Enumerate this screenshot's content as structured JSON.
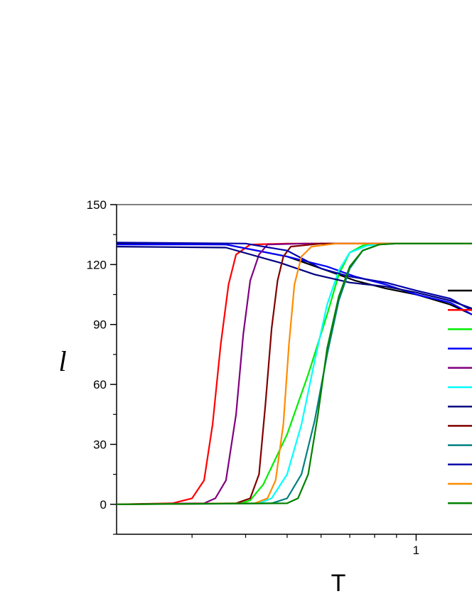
{
  "chart_data": {
    "type": "line",
    "xlabel": "T",
    "ylabel": "l",
    "x_scale": "log",
    "xlim": [
      0.2,
      1.35
    ],
    "ylim": [
      -15,
      150
    ],
    "y_ticks": [
      0,
      30,
      60,
      90,
      120,
      150
    ],
    "x_ticks_labeled": [
      1
    ],
    "x_ticks_minor": [
      0.3,
      0.4,
      0.5,
      0.6,
      0.7,
      0.8,
      0.9
    ],
    "legend_position": "right",
    "series": [
      {
        "color": "#000000",
        "points": [
          [
            0.2,
            130.5
          ],
          [
            0.36,
            130
          ],
          [
            0.5,
            124
          ],
          [
            0.62,
            117
          ],
          [
            0.72,
            112
          ],
          [
            0.85,
            108
          ],
          [
            1.0,
            105
          ],
          [
            1.2,
            100
          ],
          [
            1.35,
            95
          ]
        ]
      },
      {
        "color": "#ff0000",
        "points": [
          [
            0.2,
            0
          ],
          [
            0.27,
            0.5
          ],
          [
            0.3,
            3
          ],
          [
            0.32,
            12
          ],
          [
            0.335,
            40
          ],
          [
            0.35,
            80
          ],
          [
            0.365,
            110
          ],
          [
            0.38,
            125
          ],
          [
            0.41,
            130
          ],
          [
            0.5,
            130.5
          ],
          [
            1.35,
            130.5
          ]
        ]
      },
      {
        "color": "#00ee00",
        "points": [
          [
            0.2,
            0
          ],
          [
            0.39,
            0.5
          ],
          [
            0.41,
            2
          ],
          [
            0.44,
            10
          ],
          [
            0.5,
            35
          ],
          [
            0.56,
            65
          ],
          [
            0.62,
            95
          ],
          [
            0.66,
            115
          ],
          [
            0.7,
            126
          ],
          [
            0.75,
            129.5
          ],
          [
            0.85,
            130.5
          ],
          [
            1.35,
            130.5
          ]
        ]
      },
      {
        "color": "#0000ff",
        "points": [
          [
            0.2,
            130
          ],
          [
            0.36,
            130
          ],
          [
            0.5,
            124
          ],
          [
            0.62,
            119
          ],
          [
            0.72,
            114
          ],
          [
            0.85,
            110
          ],
          [
            1.0,
            105
          ],
          [
            1.2,
            101
          ],
          [
            1.35,
            95
          ]
        ]
      },
      {
        "color": "#800080",
        "points": [
          [
            0.2,
            0
          ],
          [
            0.32,
            0.5
          ],
          [
            0.34,
            3
          ],
          [
            0.36,
            12
          ],
          [
            0.38,
            45
          ],
          [
            0.395,
            85
          ],
          [
            0.41,
            112
          ],
          [
            0.43,
            125
          ],
          [
            0.45,
            130
          ],
          [
            0.55,
            130.5
          ],
          [
            1.35,
            130.5
          ]
        ]
      },
      {
        "color": "#00ffff",
        "points": [
          [
            0.2,
            0
          ],
          [
            0.43,
            0.5
          ],
          [
            0.46,
            3
          ],
          [
            0.5,
            15
          ],
          [
            0.54,
            40
          ],
          [
            0.58,
            72
          ],
          [
            0.62,
            100
          ],
          [
            0.66,
            117
          ],
          [
            0.7,
            126
          ],
          [
            0.77,
            129.5
          ],
          [
            0.85,
            130.5
          ],
          [
            1.35,
            130.5
          ]
        ]
      },
      {
        "color": "#000080",
        "points": [
          [
            0.2,
            129
          ],
          [
            0.36,
            128.5
          ],
          [
            0.48,
            121
          ],
          [
            0.58,
            115
          ],
          [
            0.7,
            111
          ],
          [
            0.85,
            109
          ],
          [
            1.0,
            106
          ],
          [
            1.2,
            102
          ],
          [
            1.35,
            98
          ]
        ]
      },
      {
        "color": "#800000",
        "points": [
          [
            0.2,
            0
          ],
          [
            0.38,
            0.5
          ],
          [
            0.41,
            3
          ],
          [
            0.43,
            15
          ],
          [
            0.445,
            50
          ],
          [
            0.46,
            88
          ],
          [
            0.475,
            112
          ],
          [
            0.49,
            124
          ],
          [
            0.51,
            129
          ],
          [
            0.6,
            130.5
          ],
          [
            1.35,
            130.5
          ]
        ]
      },
      {
        "color": "#008080",
        "points": [
          [
            0.2,
            0
          ],
          [
            0.46,
            0.5
          ],
          [
            0.5,
            3
          ],
          [
            0.54,
            15
          ],
          [
            0.58,
            42
          ],
          [
            0.62,
            75
          ],
          [
            0.66,
            102
          ],
          [
            0.7,
            118
          ],
          [
            0.75,
            127
          ],
          [
            0.82,
            130
          ],
          [
            0.9,
            130.5
          ],
          [
            1.35,
            130.5
          ]
        ]
      },
      {
        "color": "#0000aa",
        "points": [
          [
            0.2,
            131
          ],
          [
            0.4,
            130.5
          ],
          [
            0.5,
            127
          ],
          [
            0.6,
            118
          ],
          [
            0.7,
            114
          ],
          [
            0.85,
            111
          ],
          [
            1.0,
            107
          ],
          [
            1.2,
            103
          ],
          [
            1.35,
            97
          ]
        ]
      },
      {
        "color": "#ff8c00",
        "points": [
          [
            0.2,
            0
          ],
          [
            0.42,
            0.5
          ],
          [
            0.45,
            3
          ],
          [
            0.47,
            12
          ],
          [
            0.49,
            40
          ],
          [
            0.505,
            80
          ],
          [
            0.52,
            110
          ],
          [
            0.54,
            124
          ],
          [
            0.57,
            129
          ],
          [
            0.65,
            130.5
          ],
          [
            1.35,
            130.5
          ]
        ]
      },
      {
        "color": "#008000",
        "points": [
          [
            0.2,
            0
          ],
          [
            0.5,
            0.5
          ],
          [
            0.53,
            3
          ],
          [
            0.56,
            15
          ],
          [
            0.59,
            45
          ],
          [
            0.62,
            78
          ],
          [
            0.66,
            104
          ],
          [
            0.7,
            119
          ],
          [
            0.75,
            127
          ],
          [
            0.82,
            130
          ],
          [
            0.9,
            130.5
          ],
          [
            1.35,
            130.5
          ]
        ]
      }
    ]
  }
}
